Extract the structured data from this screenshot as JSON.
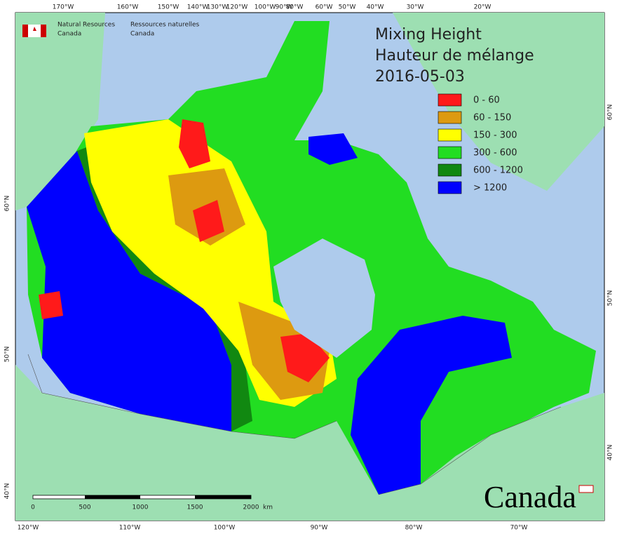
{
  "header": {
    "agency_en": [
      "Natural Resources",
      "Canada"
    ],
    "agency_fr": [
      "Ressources naturelles",
      "Canada"
    ]
  },
  "title": [
    "Mixing Height",
    "Hauteur de mélange",
    "2016-05-03"
  ],
  "legend": [
    {
      "label": "0 - 60",
      "color": "#ff1a1a"
    },
    {
      "label": "60 - 150",
      "color": "#dd9a10"
    },
    {
      "label": "150 - 300",
      "color": "#ffff00"
    },
    {
      "label": "300 - 600",
      "color": "#22dd22"
    },
    {
      "label": "600 - 1200",
      "color": "#118811"
    },
    {
      "label": "> 1200",
      "color": "#0000ff"
    }
  ],
  "graticule": {
    "top": [
      "170°W",
      "160°W",
      "150°W",
      "140°W",
      "130°W",
      "120°W",
      "100°W",
      "90°W",
      "80°W",
      "60°W",
      "50°W",
      "40°W",
      "30°W",
      "20°W"
    ],
    "bottom": [
      "120°W",
      "110°W",
      "100°W",
      "90°W",
      "80°W",
      "70°W"
    ],
    "left": [
      "60°N",
      "50°N",
      "40°N"
    ],
    "right": [
      "60°N",
      "50°N",
      "40°N"
    ]
  },
  "scale_bar": {
    "ticks": [
      "0",
      "500",
      "1000",
      "1500",
      "2000"
    ],
    "unit": "km"
  },
  "wordmark": "Canada"
}
